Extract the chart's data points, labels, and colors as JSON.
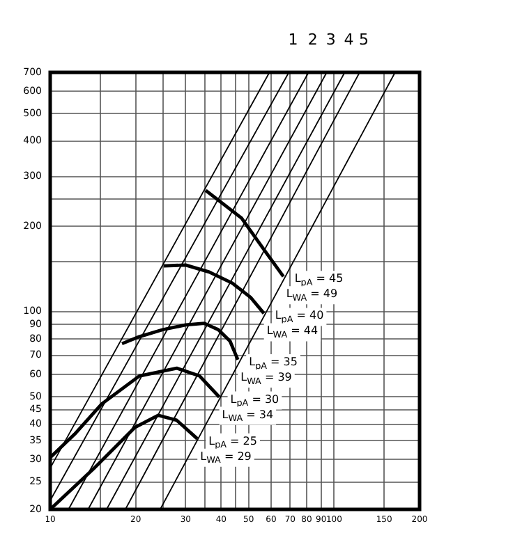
{
  "chart_data": {
    "type": "line",
    "log": "xy",
    "grid": true,
    "marker": "none",
    "xlim": [
      10,
      200
    ],
    "ylim": [
      20,
      700
    ],
    "xticks": [
      10,
      {
        "value": 15,
        "label": null
      },
      20,
      {
        "value": 25,
        "label": null
      },
      30,
      {
        "value": 35,
        "label": null
      },
      40,
      {
        "value": 45,
        "label": null
      },
      50,
      60,
      70,
      80,
      90,
      100,
      150,
      200
    ],
    "yticks": [
      20,
      25,
      30,
      35,
      40,
      45,
      50,
      60,
      70,
      80,
      90,
      100,
      {
        "value": 150,
        "label": null
      },
      200,
      {
        "value": 250,
        "label": null
      },
      300,
      400,
      500,
      600,
      700
    ],
    "series": [
      {
        "color": "#000000",
        "x": [
          10,
          59.2
        ],
        "values": [
          28,
          700
        ]
      },
      {
        "name": "1",
        "color": "#000000",
        "x": [
          10,
          69.3
        ],
        "values": [
          21.5,
          700
        ]
      },
      {
        "name": "2",
        "color": "#000000",
        "x": [
          11.6,
          81.3
        ],
        "values": [
          20,
          700
        ]
      },
      {
        "name": "3",
        "color": "#000000",
        "x": [
          13.6,
          94.2
        ],
        "values": [
          20,
          700
        ]
      },
      {
        "name": "4",
        "color": "#000000",
        "x": [
          15.8,
          109
        ],
        "values": [
          20,
          700
        ]
      },
      {
        "name": "5",
        "color": "#000000",
        "x": [
          18.4,
          123
        ],
        "values": [
          20,
          700
        ]
      },
      {
        "color": "#000000",
        "x": [
          24.4,
          164
        ],
        "values": [
          20,
          700
        ]
      },
      {
        "name": "L$_{pA}$ = 45",
        "color": "#000000",
        "x": [
          35.3,
          47.2,
          57,
          66.3
        ],
        "values": [
          268,
          214,
          164,
          133
        ]
      },
      {
        "name": "L$_{pA}$ = 40",
        "color": "#000000",
        "x": [
          25.1,
          30,
          36.3,
          43.8,
          50.9,
          56.6
        ],
        "values": [
          145,
          146,
          138,
          126,
          112,
          98.5
        ]
      },
      {
        "name": "L$_{pA}$ = 35",
        "color": "#000000",
        "x": [
          17.9,
          20.6,
          24.9,
          30,
          34.9,
          39.1,
          43,
          45.8
        ],
        "values": [
          77,
          81.5,
          86.3,
          89.7,
          90.9,
          86.3,
          78.6,
          67.6
        ]
      },
      {
        "name": "L$_{pA}$ = 30",
        "color": "#000000",
        "x": [
          10,
          12.2,
          15.2,
          20.6,
          27.9,
          33.6,
          39.4
        ],
        "values": [
          30.5,
          36.9,
          47.2,
          59.2,
          63.1,
          59.2,
          49.9
        ]
      },
      {
        "name": "L$_{pA}$ = 25",
        "color": "#000000",
        "x": [
          10,
          14.2,
          19.9,
          24,
          27.9,
          33
        ],
        "values": [
          20,
          27.8,
          39,
          43,
          41.3,
          35.5
        ]
      }
    ],
    "annotations": [
      {
        "text": "L$_{WA}$ = 49",
        "x": 66.3,
        "y": 133
      },
      {
        "text": "L$_{WA}$ = 44",
        "x": 56.6,
        "y": 98.5
      },
      {
        "text": "L$_{WA}$ = 39",
        "x": 45.8,
        "y": 67.6
      },
      {
        "text": "L$_{WA}$ = 34",
        "x": 39.4,
        "y": 49.9
      },
      {
        "text": "L$_{WA}$ = 29",
        "x": 33,
        "y": 35.5
      }
    ]
  }
}
